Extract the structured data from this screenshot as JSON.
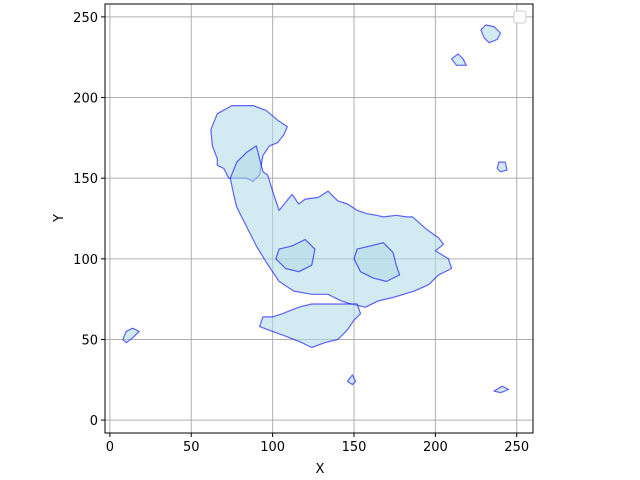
{
  "chart_data": {
    "type": "area",
    "xlabel": "X",
    "ylabel": "Y",
    "xlim": [
      -3,
      260
    ],
    "ylim": [
      -8,
      258
    ],
    "xticks": [
      0,
      50,
      100,
      150,
      200,
      250
    ],
    "yticks": [
      0,
      50,
      100,
      150,
      200,
      250
    ],
    "grid": true,
    "legend": {
      "placement": "top-right",
      "entries": []
    },
    "colors": {
      "fill": "#add8e6",
      "edge": "#0000ff",
      "grid": "#b0b0b0"
    },
    "series": [
      {
        "points": [
          [
            63,
            170
          ],
          [
            66,
            162
          ],
          [
            66,
            158
          ],
          [
            70,
            156
          ],
          [
            73,
            150
          ],
          [
            84,
            150
          ],
          [
            88,
            148
          ],
          [
            92,
            152
          ],
          [
            94,
            164
          ],
          [
            98,
            170
          ],
          [
            103,
            172
          ],
          [
            107,
            177
          ],
          [
            109,
            182
          ],
          [
            103,
            186
          ],
          [
            96,
            192
          ],
          [
            88,
            195
          ],
          [
            75,
            195
          ],
          [
            66,
            190
          ],
          [
            62,
            180
          ]
        ]
      },
      {
        "points": [
          [
            90,
            170
          ],
          [
            92,
            162
          ],
          [
            94,
            154
          ],
          [
            97,
            152
          ],
          [
            100,
            142
          ],
          [
            104,
            130
          ],
          [
            108,
            135
          ],
          [
            112,
            140
          ],
          [
            116,
            134
          ],
          [
            120,
            137
          ],
          [
            128,
            138
          ],
          [
            134,
            142
          ],
          [
            140,
            136
          ],
          [
            146,
            134
          ],
          [
            152,
            130
          ],
          [
            158,
            128
          ],
          [
            164,
            127
          ],
          [
            168,
            126
          ],
          [
            176,
            127
          ],
          [
            182,
            126
          ],
          [
            186,
            126
          ],
          [
            195,
            118
          ],
          [
            202,
            113
          ],
          [
            205,
            109
          ],
          [
            200,
            105
          ],
          [
            208,
            100
          ],
          [
            210,
            94
          ],
          [
            202,
            90
          ],
          [
            196,
            84
          ],
          [
            187,
            80
          ],
          [
            174,
            76
          ],
          [
            165,
            74
          ],
          [
            157,
            70
          ],
          [
            148,
            72
          ],
          [
            142,
            74
          ],
          [
            134,
            78
          ],
          [
            124,
            78
          ],
          [
            113,
            80
          ],
          [
            104,
            86
          ],
          [
            96,
            98
          ],
          [
            90,
            108
          ],
          [
            86,
            116
          ],
          [
            82,
            124
          ],
          [
            78,
            132
          ],
          [
            76,
            140
          ],
          [
            74,
            150
          ],
          [
            78,
            160
          ],
          [
            84,
            166
          ]
        ]
      },
      {
        "points": [
          [
            94,
            64
          ],
          [
            92,
            58
          ],
          [
            100,
            55
          ],
          [
            108,
            52
          ],
          [
            118,
            48
          ],
          [
            124,
            45
          ],
          [
            132,
            48
          ],
          [
            140,
            50
          ],
          [
            146,
            56
          ],
          [
            150,
            62
          ],
          [
            154,
            66
          ],
          [
            152,
            72
          ],
          [
            142,
            72
          ],
          [
            134,
            72
          ],
          [
            124,
            72
          ],
          [
            116,
            70
          ],
          [
            106,
            66
          ],
          [
            100,
            64
          ]
        ]
      },
      {
        "points": [
          [
            228,
            242
          ],
          [
            230,
            237
          ],
          [
            233,
            234
          ],
          [
            238,
            236
          ],
          [
            240,
            240
          ],
          [
            236,
            244
          ],
          [
            231,
            245
          ]
        ]
      },
      {
        "points": [
          [
            210,
            224
          ],
          [
            213,
            220
          ],
          [
            219,
            220
          ],
          [
            217,
            224
          ],
          [
            214,
            227
          ]
        ]
      },
      {
        "points": [
          [
            8,
            50
          ],
          [
            10,
            48
          ],
          [
            14,
            51
          ],
          [
            18,
            55
          ],
          [
            14,
            57
          ],
          [
            10,
            55
          ]
        ]
      },
      {
        "points": [
          [
            238,
            156
          ],
          [
            240,
            154
          ],
          [
            244,
            155
          ],
          [
            243,
            160
          ],
          [
            239,
            160
          ]
        ]
      },
      {
        "points": [
          [
            146,
            24
          ],
          [
            149,
            22
          ],
          [
            151,
            24
          ],
          [
            149,
            28
          ]
        ]
      },
      {
        "points": [
          [
            236,
            18
          ],
          [
            240,
            17
          ],
          [
            245,
            19
          ],
          [
            241,
            21
          ]
        ]
      },
      {
        "points": [
          [
            152,
            106
          ],
          [
            160,
            108
          ],
          [
            168,
            110
          ],
          [
            174,
            104
          ],
          [
            176,
            96
          ],
          [
            178,
            90
          ],
          [
            170,
            86
          ],
          [
            162,
            88
          ],
          [
            154,
            92
          ],
          [
            150,
            100
          ]
        ]
      },
      {
        "points": [
          [
            104,
            106
          ],
          [
            112,
            108
          ],
          [
            120,
            112
          ],
          [
            126,
            106
          ],
          [
            124,
            96
          ],
          [
            116,
            92
          ],
          [
            108,
            94
          ],
          [
            102,
            100
          ]
        ]
      }
    ]
  }
}
